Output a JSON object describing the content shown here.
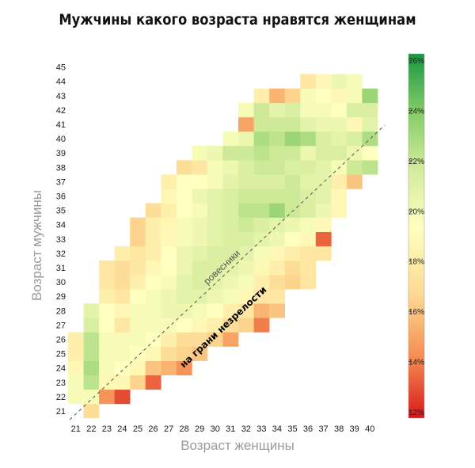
{
  "chart_data": {
    "type": "heatmap",
    "title": "Мужчины какого возраста нравятся женщинам",
    "xlabel": "Возраст женщины",
    "ylabel": "Возраст мужчины",
    "x_categories": [
      21,
      22,
      23,
      24,
      25,
      26,
      27,
      28,
      29,
      30,
      31,
      32,
      33,
      34,
      35,
      36,
      37,
      38,
      39,
      40
    ],
    "y_categories": [
      21,
      22,
      23,
      24,
      25,
      26,
      27,
      28,
      29,
      30,
      31,
      32,
      33,
      34,
      35,
      36,
      37,
      38,
      39,
      40,
      41,
      42,
      43,
      44,
      45
    ],
    "colorbar": {
      "min": 12,
      "max": 26,
      "ticks": [
        "26%",
        "24%",
        "22%",
        "20%",
        "18%",
        "16%",
        "14%",
        "12%"
      ],
      "colors": [
        "#d7191c",
        "#f58e52",
        "#fdd992",
        "#ffffbf",
        "#d4ec9d",
        "#86cc68",
        "#1a9641"
      ]
    },
    "annotations": [
      {
        "text": "ровесники",
        "style": "light"
      },
      {
        "text": "на грани незрелости",
        "style": "bold"
      }
    ],
    "grid": false,
    "rows": {
      "21": {
        "22": 17
      },
      "22": {
        "21": 19.5,
        "22": 19.5,
        "23": 14.5,
        "24": 13
      },
      "23": {
        "21": 19.5,
        "22": 22,
        "23": 18.5,
        "24": 18.5,
        "25": 16.5,
        "26": 13.5
      },
      "24": {
        "21": 18.5,
        "22": 22.5,
        "23": 19.5,
        "24": 19,
        "25": 18.5,
        "26": 16,
        "27": 15.5,
        "28": 14.5
      },
      "25": {
        "21": 18,
        "22": 22,
        "23": 19.5,
        "24": 19.5,
        "25": 19,
        "26": 18.5,
        "27": 17,
        "28": 16.5,
        "29": 16
      },
      "26": {
        "21": 18,
        "22": 22,
        "23": 19.5,
        "24": 19.5,
        "25": 19.5,
        "26": 19,
        "27": 18,
        "28": 17,
        "29": 17,
        "30": 16.5,
        "31": 15
      },
      "27": {
        "22": 21,
        "23": 19,
        "24": 17.5,
        "25": 19.5,
        "26": 19.5,
        "27": 19.5,
        "28": 19,
        "29": 18.5,
        "30": 18,
        "31": 17,
        "32": 16.5,
        "33": 14
      },
      "28": {
        "22": 20.5,
        "23": 19,
        "24": 18.5,
        "25": 19.5,
        "26": 19.5,
        "27": 20,
        "28": 20,
        "29": 19.5,
        "30": 19,
        "31": 18,
        "32": 17.5,
        "33": 15.5,
        "34": 16
      },
      "29": {
        "23": 18,
        "24": 17.5,
        "25": 19,
        "26": 19.5,
        "27": 20,
        "28": 20.5,
        "29": 20.5,
        "30": 20,
        "31": 19.5,
        "32": 18.5,
        "33": 17.5,
        "34": 17.5
      },
      "30": {
        "23": 17.5,
        "24": 17,
        "25": 18,
        "26": 19,
        "27": 19.5,
        "28": 20.5,
        "29": 21,
        "30": 20.5,
        "31": 20,
        "32": 19.5,
        "33": 18,
        "34": 17,
        "35": 16.5,
        "36": 17.5
      },
      "31": {
        "23": 17.5,
        "24": 17,
        "25": 17.5,
        "26": 18.5,
        "27": 19,
        "28": 20,
        "29": 21,
        "30": 21,
        "31": 20.5,
        "32": 20,
        "33": 18.5,
        "34": 18,
        "35": 17,
        "36": 17.5
      },
      "32": {
        "24": 18,
        "25": 17.5,
        "26": 18,
        "27": 19,
        "28": 20,
        "29": 20.5,
        "30": 21,
        "31": 21,
        "32": 20.5,
        "33": 19.5,
        "34": 18.5,
        "35": 18,
        "36": 17.5,
        "37": 17.5
      },
      "33": {
        "25": 16.5,
        "26": 18,
        "27": 18.5,
        "28": 19.5,
        "29": 20,
        "30": 20.5,
        "31": 21,
        "32": 21,
        "33": 20.5,
        "34": 20,
        "35": 19,
        "36": 18.5,
        "37": 13.5
      },
      "34": {
        "25": 16.5,
        "26": 18,
        "27": 18.5,
        "28": 19.5,
        "29": 20,
        "30": 20.5,
        "31": 21,
        "32": 21.5,
        "33": 21,
        "34": 20.5,
        "35": 20,
        "36": 19.5,
        "37": 18.5
      },
      "35": {
        "26": 17,
        "27": 18,
        "28": 19,
        "29": 19.5,
        "30": 20.5,
        "31": 21,
        "32": 22,
        "33": 22,
        "34": 23,
        "35": 21.5,
        "36": 21,
        "37": 20,
        "38": 18.5
      },
      "36": {
        "27": 18.5,
        "28": 19,
        "29": 20,
        "30": 20.5,
        "31": 21,
        "32": 21.5,
        "33": 21.5,
        "34": 21.5,
        "35": 21.5,
        "36": 21,
        "37": 20.5,
        "38": 18.5
      },
      "37": {
        "27": 18,
        "28": 19,
        "29": 19,
        "30": 19.5,
        "31": 20.5,
        "32": 21,
        "33": 21,
        "34": 21,
        "35": 21.5,
        "36": 20.5,
        "37": 20.5,
        "38": 18,
        "39": 16
      },
      "38": {
        "28": 17,
        "29": 17.5,
        "30": 19.5,
        "31": 20,
        "32": 21,
        "33": 21.5,
        "34": 21.5,
        "35": 21,
        "36": 21,
        "37": 20.5,
        "38": 19.5,
        "39": 21.5,
        "40": 22
      },
      "39": {
        "29": 19.5,
        "30": 20,
        "31": 21.5,
        "32": 21.5,
        "33": 22,
        "34": 21.5,
        "35": 21.5,
        "36": 20,
        "37": 21,
        "38": 21,
        "39": 20,
        "40": 19
      },
      "40": {
        "31": 19.5,
        "32": 20,
        "33": 22.5,
        "34": 22,
        "35": 23,
        "36": 22.5,
        "37": 21,
        "38": 20.5,
        "39": 21,
        "40": 22.5
      },
      "41": {
        "32": 15,
        "33": 21.5,
        "34": 21.5,
        "35": 21.5,
        "36": 20.5,
        "37": 20,
        "38": 20,
        "39": 18.5,
        "40": 20.5
      },
      "42": {
        "32": 19.5,
        "33": 21.5,
        "34": 20.5,
        "35": 21,
        "36": 19.5,
        "37": 19.5,
        "38": 19,
        "39": 21,
        "40": 21
      },
      "43": {
        "33": 18,
        "34": 15.5,
        "35": 16.5,
        "36": 19.5,
        "37": 19,
        "38": 18.5,
        "39": 19.5,
        "40": 23
      },
      "44": {
        "36": 17.5,
        "37": 18.5,
        "38": 20,
        "39": 19.5
      }
    }
  }
}
